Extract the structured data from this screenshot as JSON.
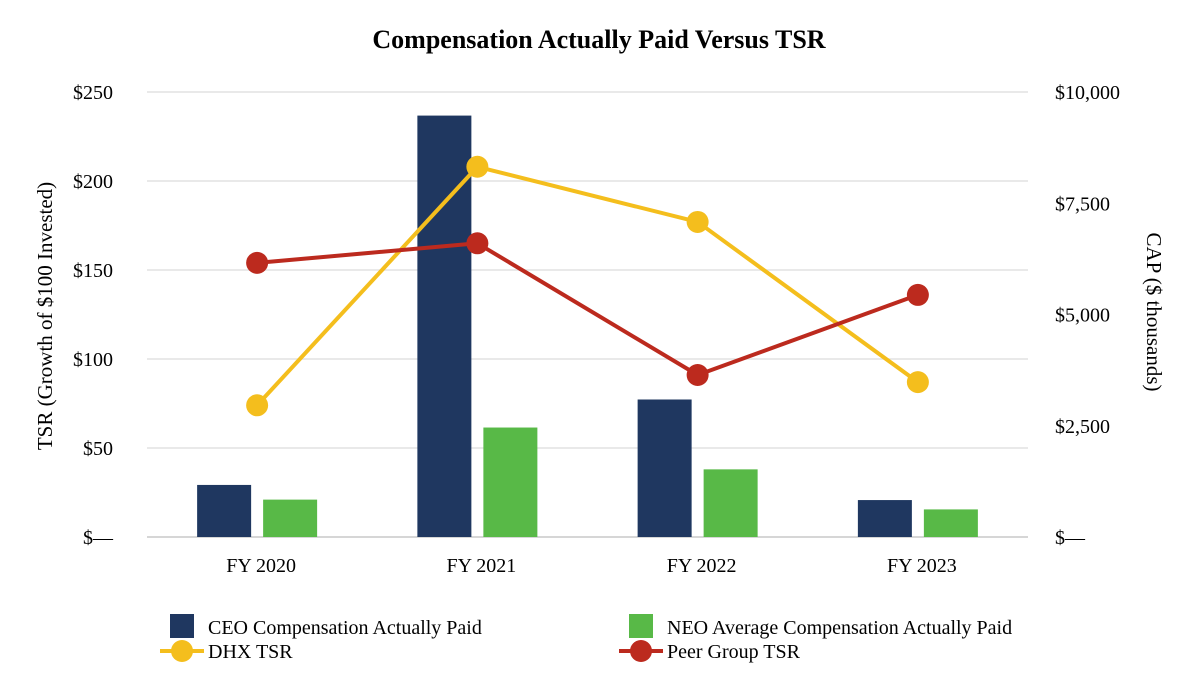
{
  "chart_data": {
    "type": "bar",
    "title": "Compensation Actually Paid Versus TSR",
    "categories": [
      "FY 2020",
      "FY 2021",
      "FY 2022",
      "FY 2023"
    ],
    "y_left": {
      "label": "TSR (Growth of $100 Invested)",
      "range": [
        0,
        250
      ],
      "ticks": [
        0,
        50,
        100,
        150,
        200,
        250
      ],
      "tick_labels": [
        "$—",
        "$50",
        "$100",
        "$150",
        "$200",
        "$250"
      ]
    },
    "y_right": {
      "label": "CAP ($ thousands)",
      "range": [
        0,
        10000
      ],
      "ticks": [
        0,
        2500,
        5000,
        7500,
        10000
      ],
      "tick_labels": [
        "$—",
        "$2,500",
        "$5,000",
        "$7,500",
        "$10,000"
      ]
    },
    "grid": true,
    "legend_position": "bottom",
    "bar_series": [
      {
        "name": "CEO Compensation Actually Paid",
        "axis": "right",
        "color": "#1f3760",
        "values": [
          1170,
          9470,
          3090,
          830
        ]
      },
      {
        "name": "NEO Average Compensation Actually Paid",
        "axis": "right",
        "color": "#58b947",
        "values": [
          840,
          2460,
          1520,
          620
        ]
      }
    ],
    "line_series": [
      {
        "name": "DHX TSR",
        "axis": "left",
        "color": "#f4be1d",
        "values": [
          74,
          208,
          177,
          87
        ]
      },
      {
        "name": "Peer Group TSR",
        "axis": "left",
        "color": "#bc2a1e",
        "values": [
          154,
          165,
          91,
          136
        ]
      }
    ]
  }
}
